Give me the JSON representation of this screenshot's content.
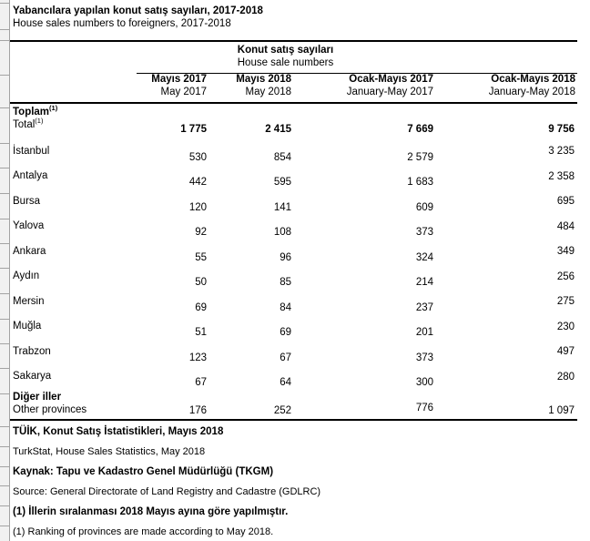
{
  "page": {
    "title_tr": "Yabancılara yapılan konut satış sayıları, 2017-2018",
    "title_en": "House sales numbers to foreigners, 2017-2018"
  },
  "table": {
    "group_header": {
      "tr": "Konut satış sayıları",
      "en": "House sale numbers"
    },
    "columns": [
      {
        "tr": "Mayıs 2017",
        "en": "May 2017"
      },
      {
        "tr": "Mayıs 2018",
        "en": "May 2018"
      },
      {
        "tr": "Ocak-Mayıs 2017",
        "en": "January-May 2017"
      },
      {
        "tr": "Ocak-Mayıs 2018",
        "en": "January-May 2018"
      }
    ],
    "total_row": {
      "label_tr": "Toplam",
      "label_en": "Total",
      "footnote_mark": "(1)",
      "values": [
        "1 775",
        "2 415",
        "7 669",
        "9 756"
      ]
    },
    "rows": [
      {
        "label": "İstanbul",
        "values": [
          "530",
          "854",
          "2 579",
          "3 235"
        ]
      },
      {
        "label": "Antalya",
        "values": [
          "442",
          "595",
          "1 683",
          "2 358"
        ]
      },
      {
        "label": "Bursa",
        "values": [
          "120",
          "141",
          "609",
          "695"
        ]
      },
      {
        "label": "Yalova",
        "values": [
          "92",
          "108",
          "373",
          "484"
        ]
      },
      {
        "label": "Ankara",
        "values": [
          "55",
          "96",
          "324",
          "349"
        ]
      },
      {
        "label": "Aydın",
        "values": [
          "50",
          "85",
          "214",
          "256"
        ]
      },
      {
        "label": "Mersin",
        "values": [
          "69",
          "84",
          "237",
          "275"
        ]
      },
      {
        "label": "Muğla",
        "values": [
          "51",
          "69",
          "201",
          "230"
        ]
      },
      {
        "label": "Trabzon",
        "values": [
          "123",
          "67",
          "373",
          "497"
        ]
      },
      {
        "label": "Sakarya",
        "values": [
          "67",
          "64",
          "300",
          "280"
        ]
      }
    ],
    "other_row": {
      "label_tr": "Diğer iller",
      "label_en": "Other provinces",
      "values": [
        "176",
        "252",
        "776",
        "1 097"
      ]
    }
  },
  "footer": {
    "lines": [
      {
        "text": "TÜİK, Konut Satış İstatistikleri, Mayıs 2018",
        "bold": true
      },
      {
        "text": "TurkStat, House Sales Statistics, May 2018",
        "bold": false
      },
      {
        "text": "Kaynak: Tapu ve Kadastro Genel Müdürlüğü (TKGM)",
        "bold": true
      },
      {
        "text": "Source: General Directorate of Land Registry and Cadastre (GDLRC)",
        "bold": false
      },
      {
        "text": "(1) İllerin sıralanması 2018 Mayıs ayına göre yapılmıştır.",
        "bold": true
      },
      {
        "text": "(1) Ranking of provinces are made according to May 2018.",
        "bold": false
      }
    ]
  }
}
